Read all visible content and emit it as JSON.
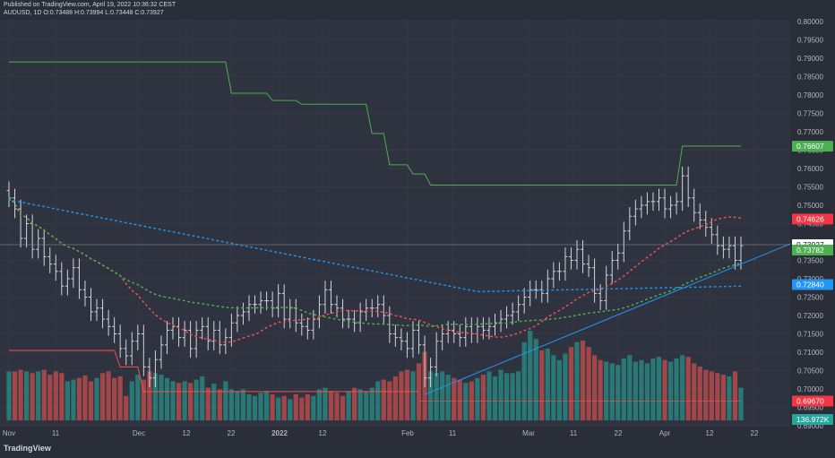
{
  "header": {
    "published": "Published on TradingView.com, April 19, 2022 10:36:32 CEST",
    "ohlc": "AUDUSD, 1D O:0.73488 H:0.73994 L:0.73448 C:0.73927"
  },
  "brand": "TradingView",
  "chart_data": {
    "type": "candlestick",
    "symbol": "AUDUSD",
    "interval": "1D",
    "ylim": [
      0.69,
      0.8
    ],
    "x_tick_labels": [
      "Nov",
      "11",
      "Dec",
      "12",
      "22",
      "2022",
      "12",
      "Feb",
      "11",
      "Mar",
      "11",
      "22",
      "Apr",
      "12",
      "22"
    ],
    "y_tick_labels": [
      "0.80000",
      "0.79500",
      "0.79000",
      "0.78500",
      "0.78000",
      "0.77500",
      "0.77000",
      "0.76500",
      "0.76000",
      "0.75500",
      "0.75000",
      "0.74500",
      "0.74000",
      "0.73500",
      "0.73000",
      "0.72500",
      "0.72000",
      "0.71500",
      "0.71000",
      "0.70500",
      "0.70000",
      "0.69500",
      "0.69000"
    ],
    "close": [
      0.752,
      0.749,
      0.741,
      0.745,
      0.738,
      0.741,
      0.736,
      0.734,
      0.732,
      0.728,
      0.73,
      0.733,
      0.727,
      0.725,
      0.721,
      0.722,
      0.719,
      0.717,
      0.715,
      0.711,
      0.709,
      0.713,
      0.715,
      0.706,
      0.703,
      0.708,
      0.712,
      0.716,
      0.717,
      0.714,
      0.716,
      0.711,
      0.716,
      0.717,
      0.713,
      0.716,
      0.712,
      0.714,
      0.718,
      0.72,
      0.721,
      0.723,
      0.723,
      0.724,
      0.724,
      0.722,
      0.726,
      0.719,
      0.722,
      0.718,
      0.717,
      0.716,
      0.719,
      0.723,
      0.727,
      0.723,
      0.722,
      0.719,
      0.719,
      0.718,
      0.721,
      0.722,
      0.722,
      0.723,
      0.72,
      0.715,
      0.714,
      0.713,
      0.711,
      0.716,
      0.712,
      0.703,
      0.706,
      0.713,
      0.715,
      0.716,
      0.715,
      0.714,
      0.717,
      0.715,
      0.717,
      0.716,
      0.717,
      0.718,
      0.719,
      0.72,
      0.721,
      0.723,
      0.725,
      0.727,
      0.727,
      0.726,
      0.73,
      0.732,
      0.732,
      0.736,
      0.735,
      0.738,
      0.734,
      0.733,
      0.726,
      0.724,
      0.731,
      0.735,
      0.737,
      0.743,
      0.747,
      0.749,
      0.75,
      0.751,
      0.751,
      0.752,
      0.749,
      0.75,
      0.751,
      0.758,
      0.752,
      0.748,
      0.746,
      0.744,
      0.742,
      0.739,
      0.738,
      0.739,
      0.735,
      0.739
    ],
    "volumes": [
      60,
      60,
      62,
      60,
      58,
      60,
      62,
      56,
      60,
      58,
      48,
      50,
      52,
      55,
      48,
      52,
      58,
      60,
      52,
      54,
      30,
      48,
      56,
      50,
      60,
      58,
      56,
      52,
      48,
      46,
      48,
      46,
      50,
      54,
      40,
      45,
      38,
      48,
      38,
      36,
      38,
      32,
      30,
      34,
      36,
      32,
      28,
      30,
      26,
      32,
      28,
      32,
      30,
      38,
      40,
      36,
      34,
      30,
      36,
      40,
      38,
      36,
      40,
      48,
      50,
      48,
      54,
      60,
      62,
      60,
      70,
      84,
      60,
      58,
      60,
      56,
      52,
      50,
      46,
      48,
      52,
      56,
      60,
      54,
      62,
      58,
      58,
      60,
      96,
      110,
      100,
      86,
      88,
      80,
      74,
      82,
      90,
      96,
      98,
      90,
      80,
      74,
      72,
      70,
      68,
      76,
      80,
      72,
      74,
      70,
      76,
      78,
      74,
      72,
      76,
      80,
      78,
      70,
      66,
      62,
      60,
      58,
      56,
      54,
      60,
      40
    ],
    "current_price": 0.73927,
    "price_labels": [
      {
        "label": "0.76607",
        "value": 0.76607,
        "color": "#4caf50"
      },
      {
        "label": "0.74626",
        "value": 0.74626,
        "color": "#f23645"
      },
      {
        "label": "0.73927",
        "value": 0.73927,
        "color": "#ffffff"
      },
      {
        "label": "0.73782",
        "value": 0.73782,
        "color": "#4caf50"
      },
      {
        "label": "0.72840",
        "value": 0.7284,
        "color": "#2196f3"
      },
      {
        "label": "0.69670",
        "value": 0.6967,
        "color": "#f23645"
      },
      {
        "label": "136.972K",
        "value": 0.6917,
        "color": "#26a69a"
      }
    ],
    "grid": true
  }
}
